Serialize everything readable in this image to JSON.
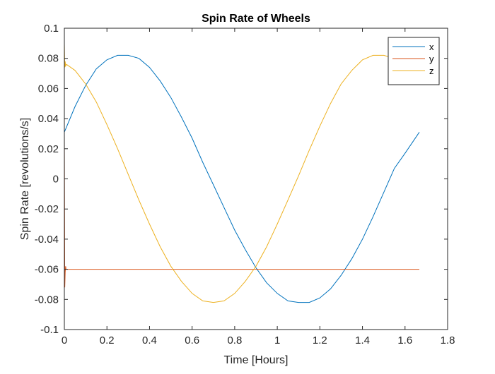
{
  "chart_data": {
    "type": "line",
    "title": "Spin Rate of Wheels",
    "xlabel": "Time [Hours]",
    "ylabel": "Spin Rate [revolutions/s]",
    "xlim": [
      0,
      1.8
    ],
    "ylim": [
      -0.1,
      0.1
    ],
    "xticks": [
      0,
      0.2,
      0.4,
      0.6,
      0.8,
      1,
      1.2,
      1.4,
      1.6,
      1.8
    ],
    "xtick_labels": [
      "0",
      "0.2",
      "0.4",
      "0.6",
      "0.8",
      "1",
      "1.2",
      "1.4",
      "1.6",
      "1.8"
    ],
    "yticks": [
      -0.1,
      -0.08,
      -0.06,
      -0.04,
      -0.02,
      0,
      0.02,
      0.04,
      0.06,
      0.08,
      0.1
    ],
    "ytick_labels": [
      "-0.1",
      "-0.08",
      "-0.06",
      "-0.04",
      "-0.02",
      "0",
      "0.02",
      "0.04",
      "0.06",
      "0.08",
      "0.1"
    ],
    "grid": false,
    "legend_position": "top-right",
    "series": [
      {
        "name": "x",
        "color": "#0072BD",
        "x": [
          0,
          0.05,
          0.1,
          0.15,
          0.2,
          0.25,
          0.3,
          0.35,
          0.4,
          0.45,
          0.5,
          0.55,
          0.6,
          0.65,
          0.7,
          0.75,
          0.8,
          0.85,
          0.9,
          0.95,
          1,
          1.05,
          1.1,
          1.15,
          1.2,
          1.25,
          1.3,
          1.35,
          1.4,
          1.45,
          1.5,
          1.55,
          1.6,
          1.667
        ],
        "y": [
          0.031,
          0.048,
          0.062,
          0.073,
          0.079,
          0.082,
          0.082,
          0.08,
          0.074,
          0.065,
          0.054,
          0.041,
          0.027,
          0.011,
          -0.004,
          -0.019,
          -0.034,
          -0.047,
          -0.059,
          -0.069,
          -0.076,
          -0.081,
          -0.082,
          -0.082,
          -0.079,
          -0.073,
          -0.064,
          -0.053,
          -0.04,
          -0.025,
          -0.009,
          0.007,
          0.017,
          0.031
        ]
      },
      {
        "name": "y",
        "color": "#D95319",
        "x": [
          0,
          0.002,
          0.004,
          0.006,
          0.008,
          0.01,
          0.1,
          0.5,
          1,
          1.5,
          1.667
        ],
        "y": [
          0.03,
          -0.072,
          -0.062,
          -0.058,
          -0.06,
          -0.06,
          -0.06,
          -0.06,
          -0.06,
          -0.06,
          -0.06
        ]
      },
      {
        "name": "z",
        "color": "#EDB120",
        "x": [
          0,
          0.002,
          0.004,
          0.006,
          0.01,
          0.05,
          0.1,
          0.15,
          0.2,
          0.25,
          0.3,
          0.35,
          0.4,
          0.45,
          0.5,
          0.55,
          0.6,
          0.65,
          0.7,
          0.75,
          0.8,
          0.85,
          0.9,
          0.95,
          1,
          1.05,
          1.1,
          1.15,
          1.2,
          1.25,
          1.3,
          1.35,
          1.4,
          1.45,
          1.5,
          1.55,
          1.6,
          1.667
        ],
        "y": [
          0.09,
          0.074,
          0.078,
          0.075,
          0.076,
          0.072,
          0.063,
          0.051,
          0.036,
          0.02,
          0.003,
          -0.014,
          -0.03,
          -0.045,
          -0.058,
          -0.068,
          -0.076,
          -0.081,
          -0.082,
          -0.081,
          -0.076,
          -0.068,
          -0.058,
          -0.045,
          -0.03,
          -0.014,
          0.002,
          0.019,
          0.035,
          0.05,
          0.063,
          0.072,
          0.079,
          0.082,
          0.082,
          0.08,
          0.08,
          0.08
        ]
      }
    ]
  }
}
